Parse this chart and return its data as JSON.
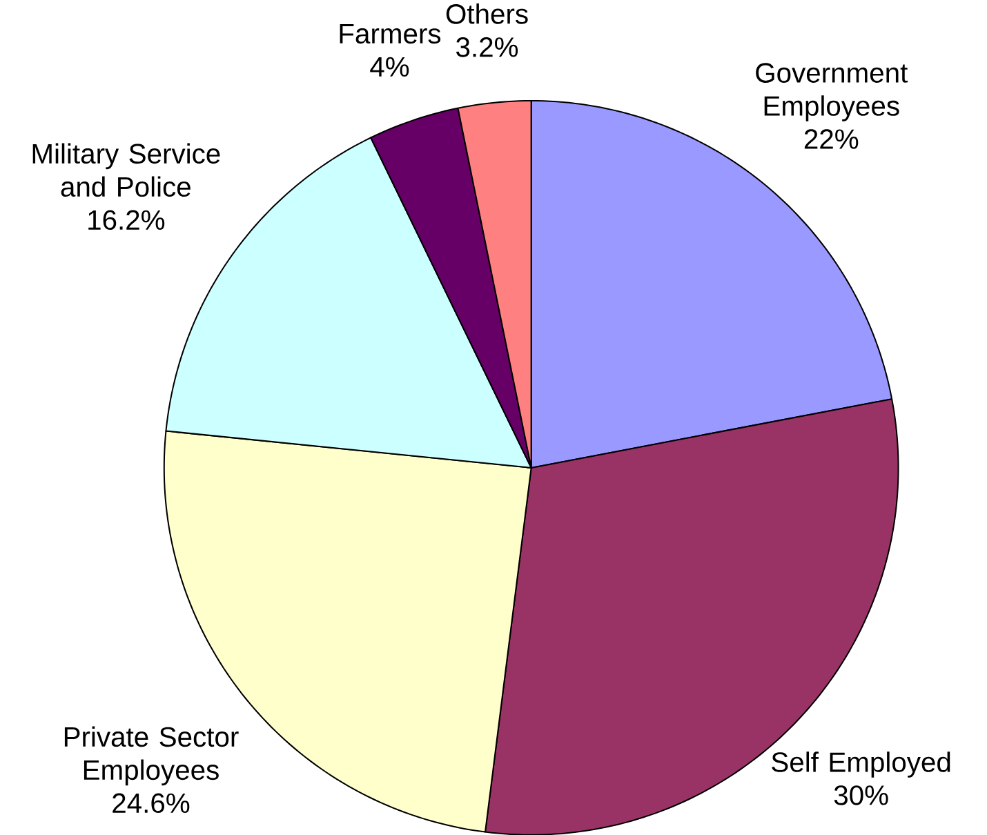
{
  "chart_data": {
    "type": "pie",
    "categories": [
      "Government Employees",
      "Self Employed",
      "Private Sector Employees",
      "Military Service and Police",
      "Farmers",
      "Others"
    ],
    "values": [
      22,
      30,
      24.6,
      16.2,
      4,
      3.2
    ],
    "value_labels": [
      "22%",
      "30%",
      "24.6%",
      "16.2%",
      "4%",
      "3.2%"
    ],
    "colors": [
      "#9999ff",
      "#993366",
      "#ffffcc",
      "#ccffff",
      "#660066",
      "#ff8080"
    ]
  }
}
